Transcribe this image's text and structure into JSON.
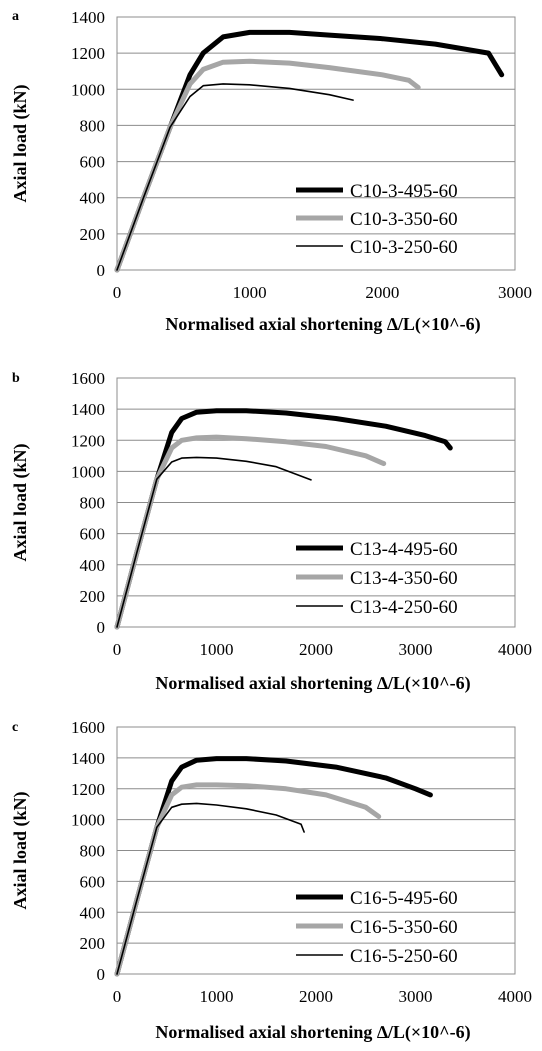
{
  "chart_data": [
    {
      "panel": "a",
      "type": "line",
      "xlabel": "Normalised axial shortening ∆/L(×10^-6)",
      "ylabel": "Axial load (kN)",
      "xlim": [
        0,
        3000
      ],
      "ylim": [
        0,
        1400
      ],
      "xticks": [
        0,
        1000,
        2000,
        3000
      ],
      "yticks": [
        0,
        200,
        400,
        600,
        800,
        1000,
        1200,
        1400
      ],
      "grid": "horizontal",
      "legend": "lower-right",
      "series": [
        {
          "name": "C10-3-495-60",
          "color": "#000000",
          "width": "heavy",
          "x": [
            0,
            200,
            400,
            550,
            650,
            800,
            1000,
            1300,
            1600,
            2000,
            2400,
            2800,
            2850,
            2900
          ],
          "y": [
            0,
            400,
            790,
            1080,
            1200,
            1290,
            1315,
            1315,
            1300,
            1280,
            1250,
            1200,
            1140,
            1080
          ]
        },
        {
          "name": "C10-3-350-60",
          "color": "#a6a6a6",
          "width": "heavy",
          "x": [
            0,
            200,
            400,
            550,
            650,
            800,
            1000,
            1300,
            1600,
            2000,
            2200,
            2270
          ],
          "y": [
            0,
            400,
            790,
            1030,
            1110,
            1150,
            1155,
            1145,
            1120,
            1080,
            1050,
            1010
          ]
        },
        {
          "name": "C10-3-250-60",
          "color": "#000000",
          "width": "thin",
          "x": [
            0,
            200,
            400,
            550,
            650,
            800,
            1000,
            1300,
            1600,
            1780
          ],
          "y": [
            0,
            400,
            790,
            960,
            1020,
            1030,
            1025,
            1005,
            970,
            940
          ]
        }
      ]
    },
    {
      "panel": "b",
      "type": "line",
      "xlabel": "Normalised axial shortening ∆/L(×10^-6)",
      "ylabel": "Axial load (kN)",
      "xlim": [
        0,
        4000
      ],
      "ylim": [
        0,
        1600
      ],
      "xticks": [
        0,
        1000,
        2000,
        3000,
        4000
      ],
      "yticks": [
        0,
        200,
        400,
        600,
        800,
        1000,
        1200,
        1400,
        1600
      ],
      "grid": "horizontal",
      "legend": "lower-right",
      "series": [
        {
          "name": "C13-4-495-60",
          "color": "#000000",
          "width": "heavy",
          "x": [
            0,
            200,
            400,
            550,
            650,
            800,
            1000,
            1300,
            1700,
            2200,
            2700,
            3100,
            3300,
            3350
          ],
          "y": [
            0,
            480,
            950,
            1250,
            1340,
            1380,
            1390,
            1390,
            1375,
            1340,
            1290,
            1230,
            1190,
            1150
          ]
        },
        {
          "name": "C13-4-350-60",
          "color": "#a6a6a6",
          "width": "heavy",
          "x": [
            0,
            200,
            400,
            550,
            650,
            800,
            1000,
            1300,
            1700,
            2100,
            2500,
            2680
          ],
          "y": [
            0,
            480,
            950,
            1150,
            1200,
            1215,
            1220,
            1210,
            1190,
            1160,
            1100,
            1050
          ]
        },
        {
          "name": "C13-4-250-60",
          "color": "#000000",
          "width": "thin",
          "x": [
            0,
            200,
            400,
            550,
            650,
            800,
            1000,
            1300,
            1600,
            1950
          ],
          "y": [
            0,
            480,
            950,
            1060,
            1085,
            1090,
            1085,
            1065,
            1030,
            945
          ]
        }
      ]
    },
    {
      "panel": "c",
      "type": "line",
      "xlabel": "Normalised axial shortening ∆/L(×10^-6)",
      "ylabel": "Axial load (kN)",
      "xlim": [
        0,
        4000
      ],
      "ylim": [
        0,
        1600
      ],
      "xticks": [
        0,
        1000,
        2000,
        3000,
        4000
      ],
      "yticks": [
        0,
        200,
        400,
        600,
        800,
        1000,
        1200,
        1400,
        1600
      ],
      "grid": "horizontal",
      "legend": "lower-right",
      "series": [
        {
          "name": "C16-5-495-60",
          "color": "#000000",
          "width": "heavy",
          "x": [
            0,
            200,
            400,
            550,
            650,
            800,
            1000,
            1300,
            1700,
            2200,
            2700,
            3000,
            3150
          ],
          "y": [
            0,
            480,
            950,
            1250,
            1340,
            1385,
            1395,
            1395,
            1380,
            1340,
            1270,
            1200,
            1160
          ]
        },
        {
          "name": "C16-5-350-60",
          "color": "#a6a6a6",
          "width": "heavy",
          "x": [
            0,
            200,
            400,
            550,
            650,
            800,
            1000,
            1300,
            1700,
            2100,
            2500,
            2630
          ],
          "y": [
            0,
            480,
            950,
            1160,
            1210,
            1225,
            1225,
            1220,
            1200,
            1160,
            1080,
            1020
          ]
        },
        {
          "name": "C16-5-250-60",
          "color": "#000000",
          "width": "thin",
          "x": [
            0,
            200,
            400,
            550,
            650,
            800,
            1000,
            1300,
            1600,
            1850,
            1880
          ],
          "y": [
            0,
            480,
            950,
            1080,
            1100,
            1105,
            1095,
            1070,
            1030,
            970,
            920
          ]
        }
      ]
    }
  ]
}
